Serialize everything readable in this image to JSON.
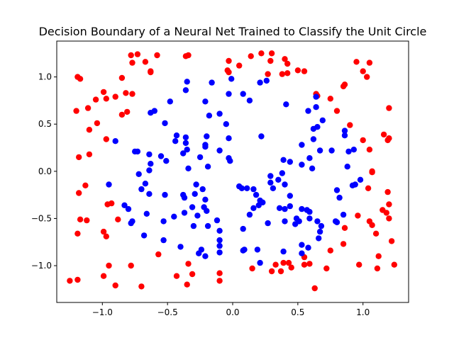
{
  "chart_data": {
    "type": "scatter",
    "title": "Decision Boundary of a Neural Net Trained to Classify the Unit Circle",
    "xlabel": "",
    "ylabel": "",
    "xlim": [
      -1.35,
      1.35
    ],
    "ylim": [
      -1.39,
      1.38
    ],
    "xticks": [
      "-1.0",
      "-0.5",
      "0.0",
      "0.5",
      "1.0"
    ],
    "yticks": [
      "-1.0",
      "-0.5",
      "0.0",
      "0.5",
      "1.0"
    ],
    "grid": false,
    "legend": "none",
    "series": [
      {
        "color": "#ff0000",
        "points": [
          [
            -1.19,
            1.0
          ],
          [
            -1.17,
            0.98
          ],
          [
            -1.05,
            0.76
          ],
          [
            -1.11,
            0.67
          ],
          [
            -0.99,
            0.84
          ],
          [
            -0.97,
            0.77
          ],
          [
            -0.9,
            0.79
          ],
          [
            -0.85,
            0.99
          ],
          [
            -0.78,
            1.23
          ],
          [
            -0.77,
            1.15
          ],
          [
            -0.73,
            1.24
          ],
          [
            -0.67,
            1.16
          ],
          [
            -0.63,
            1.05
          ],
          [
            -0.63,
            1.06
          ],
          [
            -0.58,
            1.23
          ],
          [
            -0.82,
            0.83
          ],
          [
            -0.77,
            0.82
          ],
          [
            -1.2,
            0.64
          ],
          [
            -0.85,
            0.6
          ],
          [
            -0.81,
            0.63
          ],
          [
            -1.1,
            0.44
          ],
          [
            -1.04,
            0.51
          ],
          [
            -0.97,
            0.34
          ],
          [
            -1.1,
            0.18
          ],
          [
            -1.18,
            0.15
          ],
          [
            -1.13,
            -0.15
          ],
          [
            -1.18,
            -0.23
          ],
          [
            -1.17,
            -0.51
          ],
          [
            -1.12,
            -0.52
          ],
          [
            -0.96,
            -0.35
          ],
          [
            -0.93,
            -0.34
          ],
          [
            -0.88,
            -0.51
          ],
          [
            -0.99,
            -0.64
          ],
          [
            -0.97,
            -0.69
          ],
          [
            -1.19,
            -0.66
          ],
          [
            -0.95,
            -1.0
          ],
          [
            -0.78,
            -1.0
          ],
          [
            -0.99,
            -1.11
          ],
          [
            -0.9,
            -1.21
          ],
          [
            -1.19,
            -1.15
          ],
          [
            -1.25,
            -1.16
          ],
          [
            -0.7,
            -1.22
          ],
          [
            -0.57,
            -0.88
          ],
          [
            -0.43,
            -1.11
          ],
          [
            -0.35,
            -1.2
          ],
          [
            -0.31,
            -1.09
          ],
          [
            -0.34,
            -0.98
          ],
          [
            -0.1,
            -1.16
          ],
          [
            -0.1,
            -1.08
          ],
          [
            0.15,
            -1.03
          ],
          [
            0.3,
            -1.06
          ],
          [
            0.33,
            -0.99
          ],
          [
            0.37,
            -1.06
          ],
          [
            0.39,
            -0.97
          ],
          [
            0.45,
            -1.02
          ],
          [
            0.43,
            -0.97
          ],
          [
            0.55,
            -0.99
          ],
          [
            0.55,
            -0.91
          ],
          [
            0.59,
            -0.98
          ],
          [
            0.63,
            -1.24
          ],
          [
            0.72,
            -1.03
          ],
          [
            0.75,
            -0.84
          ],
          [
            0.85,
            -0.77
          ],
          [
            0.86,
            -0.6
          ],
          [
            0.97,
            -0.99
          ],
          [
            0.96,
            -0.47
          ],
          [
            1.05,
            -0.53
          ],
          [
            1.07,
            -0.57
          ],
          [
            1.1,
            -0.66
          ],
          [
            1.11,
            -1.03
          ],
          [
            1.12,
            -0.9
          ],
          [
            1.18,
            -0.44
          ],
          [
            1.15,
            -0.41
          ],
          [
            1.22,
            -0.74
          ],
          [
            1.24,
            -0.99
          ],
          [
            1.2,
            -0.35
          ],
          [
            1.2,
            -0.5
          ],
          [
            1.19,
            -0.22
          ],
          [
            1.04,
            -0.18
          ],
          [
            1.07,
            -0.01
          ],
          [
            1.07,
            0.0
          ],
          [
            1.0,
            0.33
          ],
          [
            1.05,
            0.23
          ],
          [
            1.16,
            0.39
          ],
          [
            1.19,
            0.33
          ],
          [
            1.2,
            0.35
          ],
          [
            1.2,
            0.67
          ],
          [
            1.0,
            1.06
          ],
          [
            1.03,
            1.0
          ],
          [
            1.05,
            1.15
          ],
          [
            0.95,
            1.16
          ],
          [
            0.9,
            0.49
          ],
          [
            0.85,
            0.9
          ],
          [
            0.86,
            0.92
          ],
          [
            0.8,
            0.64
          ],
          [
            0.75,
            0.77
          ],
          [
            0.65,
            0.8
          ],
          [
            0.64,
            0.82
          ],
          [
            0.55,
            1.06
          ],
          [
            0.5,
            1.07
          ],
          [
            0.42,
            1.14
          ],
          [
            0.4,
            1.19
          ],
          [
            0.42,
            1.04
          ],
          [
            0.38,
            1.03
          ],
          [
            0.3,
            1.25
          ],
          [
            0.29,
            1.17
          ],
          [
            0.27,
            1.03
          ],
          [
            0.22,
            1.25
          ],
          [
            0.14,
            1.22
          ],
          [
            0.05,
            1.12
          ],
          [
            -0.03,
            1.05
          ],
          [
            -0.04,
            1.07
          ],
          [
            -0.03,
            1.17
          ],
          [
            -0.34,
            1.23
          ],
          [
            -0.36,
            1.22
          ]
        ]
      },
      {
        "color": "#0000ff",
        "points": [
          [
            -0.35,
            0.95
          ],
          [
            -0.36,
            0.86
          ],
          [
            -0.16,
            0.94
          ],
          [
            -0.01,
            0.98
          ],
          [
            0.08,
            0.82
          ],
          [
            0.13,
            0.75
          ],
          [
            0.21,
            0.94
          ],
          [
            0.26,
            0.96
          ],
          [
            -0.03,
            0.82
          ],
          [
            -0.21,
            0.74
          ],
          [
            -0.48,
            0.74
          ],
          [
            -0.63,
            0.62
          ],
          [
            -0.6,
            0.64
          ],
          [
            -0.52,
            0.51
          ],
          [
            -0.18,
            0.59
          ],
          [
            -0.1,
            0.61
          ],
          [
            -0.05,
            0.5
          ],
          [
            -0.43,
            0.38
          ],
          [
            -0.44,
            0.32
          ],
          [
            -0.36,
            0.36
          ],
          [
            -0.36,
            0.3
          ],
          [
            -0.2,
            0.37
          ],
          [
            -0.21,
            0.28
          ],
          [
            -0.21,
            0.26
          ],
          [
            -0.03,
            0.35
          ],
          [
            -0.9,
            0.32
          ],
          [
            -0.75,
            0.21
          ],
          [
            -0.73,
            0.21
          ],
          [
            -0.64,
            0.18
          ],
          [
            -0.55,
            0.16
          ],
          [
            -0.51,
            0.11
          ],
          [
            -0.35,
            0.23
          ],
          [
            -0.38,
            0.19
          ],
          [
            -0.25,
            0.15
          ],
          [
            -0.1,
            0.22
          ],
          [
            -0.02,
            0.11
          ],
          [
            -0.03,
            0.14
          ],
          [
            -0.19,
            0.05
          ],
          [
            -0.63,
            0.08
          ],
          [
            -0.64,
            0.01
          ],
          [
            -0.72,
            -0.03
          ],
          [
            -0.34,
            0.03
          ],
          [
            -0.95,
            -0.14
          ],
          [
            -0.7,
            -0.19
          ],
          [
            -0.67,
            -0.13
          ],
          [
            -0.64,
            -0.24
          ],
          [
            -0.52,
            -0.25
          ],
          [
            -0.28,
            -0.14
          ],
          [
            -0.29,
            -0.24
          ],
          [
            -0.23,
            -0.19
          ],
          [
            -0.38,
            -0.25
          ],
          [
            -0.37,
            -0.28
          ],
          [
            -0.21,
            -0.3
          ],
          [
            -0.22,
            -0.38
          ],
          [
            -0.2,
            -0.42
          ],
          [
            -0.31,
            -0.38
          ],
          [
            -0.45,
            -0.48
          ],
          [
            -0.37,
            -0.44
          ],
          [
            -0.27,
            -0.47
          ],
          [
            -0.19,
            -0.58
          ],
          [
            -0.12,
            -0.52
          ],
          [
            -0.1,
            -0.63
          ],
          [
            -0.3,
            -0.58
          ],
          [
            -0.53,
            -0.53
          ],
          [
            -0.83,
            -0.36
          ],
          [
            -0.8,
            -0.4
          ],
          [
            -0.77,
            -0.53
          ],
          [
            -0.78,
            -0.55
          ],
          [
            -0.66,
            -0.45
          ],
          [
            -0.68,
            -0.68
          ],
          [
            -0.53,
            -0.73
          ],
          [
            -0.4,
            -0.8
          ],
          [
            -0.24,
            -0.83
          ],
          [
            -0.26,
            -0.87
          ],
          [
            -0.21,
            -0.9
          ],
          [
            -0.1,
            -0.73
          ],
          [
            -0.1,
            -0.79
          ],
          [
            -0.1,
            -0.86
          ],
          [
            0.08,
            -0.84
          ],
          [
            0.09,
            -0.83
          ],
          [
            0.19,
            -0.83
          ],
          [
            0.21,
            -0.97
          ],
          [
            0.39,
            -0.85
          ],
          [
            0.53,
            -0.87
          ],
          [
            0.53,
            -0.78
          ],
          [
            0.58,
            -0.81
          ],
          [
            0.08,
            -0.61
          ],
          [
            0.13,
            -0.46
          ],
          [
            0.16,
            -0.39
          ],
          [
            0.2,
            -0.36
          ],
          [
            0.21,
            -0.31
          ],
          [
            0.27,
            -0.55
          ],
          [
            0.36,
            -0.39
          ],
          [
            0.4,
            -0.4
          ],
          [
            0.4,
            -0.53
          ],
          [
            0.48,
            -0.56
          ],
          [
            0.49,
            -0.5
          ],
          [
            0.51,
            -0.53
          ],
          [
            0.53,
            -0.4
          ],
          [
            0.57,
            -0.41
          ],
          [
            0.59,
            -0.43
          ],
          [
            0.59,
            -0.5
          ],
          [
            0.65,
            -0.53
          ],
          [
            0.68,
            -0.58
          ],
          [
            0.67,
            -0.64
          ],
          [
            0.66,
            -0.71
          ],
          [
            0.79,
            -0.53
          ],
          [
            0.8,
            -0.54
          ],
          [
            0.85,
            -0.46
          ],
          [
            0.8,
            -0.2
          ],
          [
            0.82,
            -0.28
          ],
          [
            0.92,
            -0.15
          ],
          [
            0.94,
            -0.14
          ],
          [
            0.98,
            -0.09
          ],
          [
            0.88,
            0.05
          ],
          [
            0.89,
            0.21
          ],
          [
            0.93,
            0.23
          ],
          [
            0.86,
            0.38
          ],
          [
            0.86,
            0.43
          ],
          [
            0.76,
            0.22
          ],
          [
            0.67,
            0.22
          ],
          [
            0.61,
            0.03
          ],
          [
            0.59,
            0.14
          ],
          [
            0.53,
            0.28
          ],
          [
            0.53,
            0.07
          ],
          [
            0.44,
            0.1
          ],
          [
            0.39,
            0.12
          ],
          [
            0.38,
            -0.02
          ],
          [
            0.35,
            -0.09
          ],
          [
            0.29,
            -0.05
          ],
          [
            0.4,
            -0.14
          ],
          [
            0.44,
            -0.26
          ],
          [
            0.44,
            -0.37
          ],
          [
            0.29,
            -0.12
          ],
          [
            0.31,
            -0.18
          ],
          [
            0.23,
            -0.33
          ],
          [
            0.16,
            -0.19
          ],
          [
            0.11,
            -0.18
          ],
          [
            0.07,
            -0.18
          ],
          [
            0.05,
            -0.16
          ],
          [
            0.18,
            -0.25
          ],
          [
            0.22,
            0.37
          ],
          [
            0.41,
            0.71
          ],
          [
            0.58,
            0.64
          ],
          [
            0.62,
            0.45
          ],
          [
            0.62,
            0.34
          ],
          [
            0.65,
            0.47
          ],
          [
            0.64,
            0.68
          ],
          [
            0.64,
            0.79
          ],
          [
            0.69,
            0.54
          ]
        ]
      }
    ]
  }
}
